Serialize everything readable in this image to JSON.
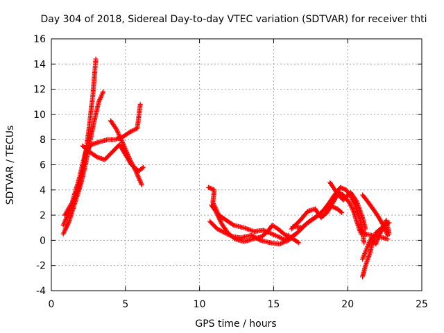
{
  "chart_data": {
    "type": "scatter",
    "title": "Day 304 of 2018, Sidereal Day-to-day VTEC variation (SDTVAR) for receiver thti",
    "xlabel": "GPS time / hours",
    "ylabel": "SDTVAR / TECUs",
    "xlim": [
      0,
      25
    ],
    "ylim": [
      -4,
      16
    ],
    "xticks": [
      0,
      5,
      10,
      15,
      20,
      25
    ],
    "yticks": [
      -4,
      -2,
      0,
      2,
      4,
      6,
      8,
      10,
      12,
      14,
      16
    ],
    "xtick_labels": [
      "0",
      "5",
      "10",
      "15",
      "20",
      "25"
    ],
    "ytick_labels": [
      "-4",
      "-2",
      "0",
      "2",
      "4",
      "6",
      "8",
      "10",
      "12",
      "14",
      "16"
    ],
    "grid": true,
    "legend": "none",
    "marker": "plus",
    "series_color": "#ff0000",
    "tracks": [
      [
        [
          0.8,
          0.5
        ],
        [
          1.2,
          1.5
        ],
        [
          1.6,
          3.0
        ],
        [
          2.0,
          4.5
        ],
        [
          2.3,
          6.0
        ],
        [
          2.6,
          7.8
        ],
        [
          2.9,
          9.5
        ],
        [
          3.2,
          11.0
        ],
        [
          3.5,
          11.8
        ]
      ],
      [
        [
          0.8,
          1.2
        ],
        [
          1.3,
          2.5
        ],
        [
          1.8,
          4.0
        ],
        [
          2.2,
          6.0
        ],
        [
          2.5,
          8.5
        ],
        [
          2.8,
          11.5
        ],
        [
          3.0,
          14.4
        ]
      ],
      [
        [
          0.9,
          2.0
        ],
        [
          1.4,
          3.0
        ],
        [
          1.9,
          5.0
        ],
        [
          2.3,
          7.0
        ],
        [
          2.7,
          7.6
        ],
        [
          3.2,
          7.8
        ],
        [
          3.8,
          8.0
        ],
        [
          4.3,
          8.0
        ],
        [
          4.8,
          8.2
        ],
        [
          5.3,
          8.6
        ],
        [
          5.8,
          8.9
        ],
        [
          6.0,
          10.8
        ]
      ],
      [
        [
          2.1,
          7.5
        ],
        [
          2.6,
          7.0
        ],
        [
          3.1,
          6.6
        ],
        [
          3.6,
          6.4
        ],
        [
          4.1,
          7.0
        ],
        [
          4.6,
          7.6
        ],
        [
          5.0,
          6.8
        ],
        [
          5.4,
          6.0
        ],
        [
          5.9,
          5.5
        ],
        [
          6.2,
          5.8
        ]
      ],
      [
        [
          4.0,
          9.5
        ],
        [
          4.4,
          8.8
        ],
        [
          4.9,
          7.5
        ],
        [
          5.3,
          6.4
        ],
        [
          5.7,
          5.5
        ],
        [
          6.1,
          4.4
        ]
      ],
      [
        [
          10.6,
          4.2
        ],
        [
          11.0,
          4.0
        ],
        [
          10.9,
          3.0
        ],
        [
          11.3,
          2.0
        ],
        [
          11.8,
          1.6
        ],
        [
          12.3,
          1.2
        ],
        [
          13.0,
          1.0
        ],
        [
          13.7,
          0.7
        ],
        [
          14.3,
          0.8
        ],
        [
          14.7,
          0.6
        ],
        [
          15.3,
          0.3
        ],
        [
          15.8,
          0.0
        ],
        [
          16.0,
          0.4
        ]
      ],
      [
        [
          10.8,
          2.8
        ],
        [
          11.1,
          2.3
        ],
        [
          11.5,
          1.3
        ],
        [
          11.9,
          0.6
        ],
        [
          12.4,
          0.1
        ],
        [
          13.0,
          -0.1
        ],
        [
          13.6,
          0.1
        ],
        [
          14.2,
          0.3
        ],
        [
          14.6,
          0.7
        ],
        [
          14.9,
          1.2
        ],
        [
          15.3,
          0.9
        ],
        [
          15.7,
          0.5
        ],
        [
          16.2,
          0.2
        ],
        [
          16.7,
          -0.2
        ]
      ],
      [
        [
          10.7,
          1.5
        ],
        [
          11.2,
          0.9
        ],
        [
          11.7,
          0.6
        ],
        [
          12.2,
          0.3
        ],
        [
          12.8,
          0.2
        ],
        [
          13.5,
          0.4
        ],
        [
          14.1,
          0.0
        ],
        [
          14.8,
          -0.2
        ],
        [
          15.4,
          -0.3
        ],
        [
          16.0,
          0.0
        ],
        [
          16.5,
          0.5
        ]
      ],
      [
        [
          16.0,
          0.1
        ],
        [
          16.6,
          0.6
        ],
        [
          17.2,
          1.3
        ],
        [
          17.8,
          1.8
        ],
        [
          18.3,
          2.3
        ],
        [
          18.7,
          2.9
        ],
        [
          19.1,
          3.6
        ],
        [
          19.5,
          4.2
        ],
        [
          19.9,
          4.0
        ],
        [
          20.2,
          3.5
        ],
        [
          20.5,
          2.8
        ],
        [
          20.8,
          1.8
        ],
        [
          21.0,
          0.8
        ],
        [
          21.1,
          -0.2
        ]
      ],
      [
        [
          16.2,
          0.9
        ],
        [
          16.8,
          1.6
        ],
        [
          17.3,
          2.3
        ],
        [
          17.8,
          2.5
        ],
        [
          18.2,
          1.8
        ],
        [
          18.6,
          2.2
        ],
        [
          19.0,
          3.0
        ],
        [
          19.4,
          3.8
        ],
        [
          19.7,
          3.6
        ],
        [
          20.1,
          3.0
        ],
        [
          20.4,
          2.3
        ],
        [
          20.6,
          1.5
        ],
        [
          20.9,
          0.5
        ]
      ],
      [
        [
          18.8,
          4.6
        ],
        [
          19.3,
          3.7
        ],
        [
          19.7,
          3.2
        ],
        [
          20.2,
          3.8
        ],
        [
          20.6,
          3.1
        ],
        [
          21.0,
          1.8
        ],
        [
          21.2,
          0.9
        ]
      ],
      [
        [
          16.3,
          1.1
        ],
        [
          16.9,
          1.0
        ],
        [
          17.4,
          1.5
        ],
        [
          17.9,
          1.9
        ],
        [
          18.4,
          2.4
        ],
        [
          18.9,
          2.7
        ],
        [
          19.3,
          2.5
        ],
        [
          19.6,
          2.2
        ]
      ],
      [
        [
          21.0,
          -2.9
        ],
        [
          21.2,
          -2.0
        ],
        [
          21.5,
          -1.0
        ],
        [
          21.7,
          0.0
        ],
        [
          21.9,
          0.6
        ],
        [
          22.2,
          0.9
        ],
        [
          22.5,
          1.2
        ],
        [
          22.8,
          1.4
        ]
      ],
      [
        [
          21.0,
          -1.5
        ],
        [
          21.3,
          -0.6
        ],
        [
          21.6,
          0.2
        ],
        [
          21.9,
          -0.3
        ],
        [
          22.1,
          0.4
        ],
        [
          22.4,
          1.0
        ],
        [
          22.6,
          1.6
        ],
        [
          22.8,
          0.5
        ]
      ],
      [
        [
          21.0,
          3.6
        ],
        [
          21.4,
          3.0
        ],
        [
          21.7,
          2.5
        ],
        [
          22.0,
          2.0
        ],
        [
          22.3,
          1.4
        ],
        [
          22.5,
          0.9
        ],
        [
          22.7,
          0.4
        ]
      ],
      [
        [
          20.9,
          0.8
        ],
        [
          21.2,
          0.5
        ],
        [
          21.6,
          0.4
        ],
        [
          22.0,
          0.3
        ],
        [
          22.4,
          0.2
        ],
        [
          22.7,
          0.1
        ]
      ]
    ]
  }
}
